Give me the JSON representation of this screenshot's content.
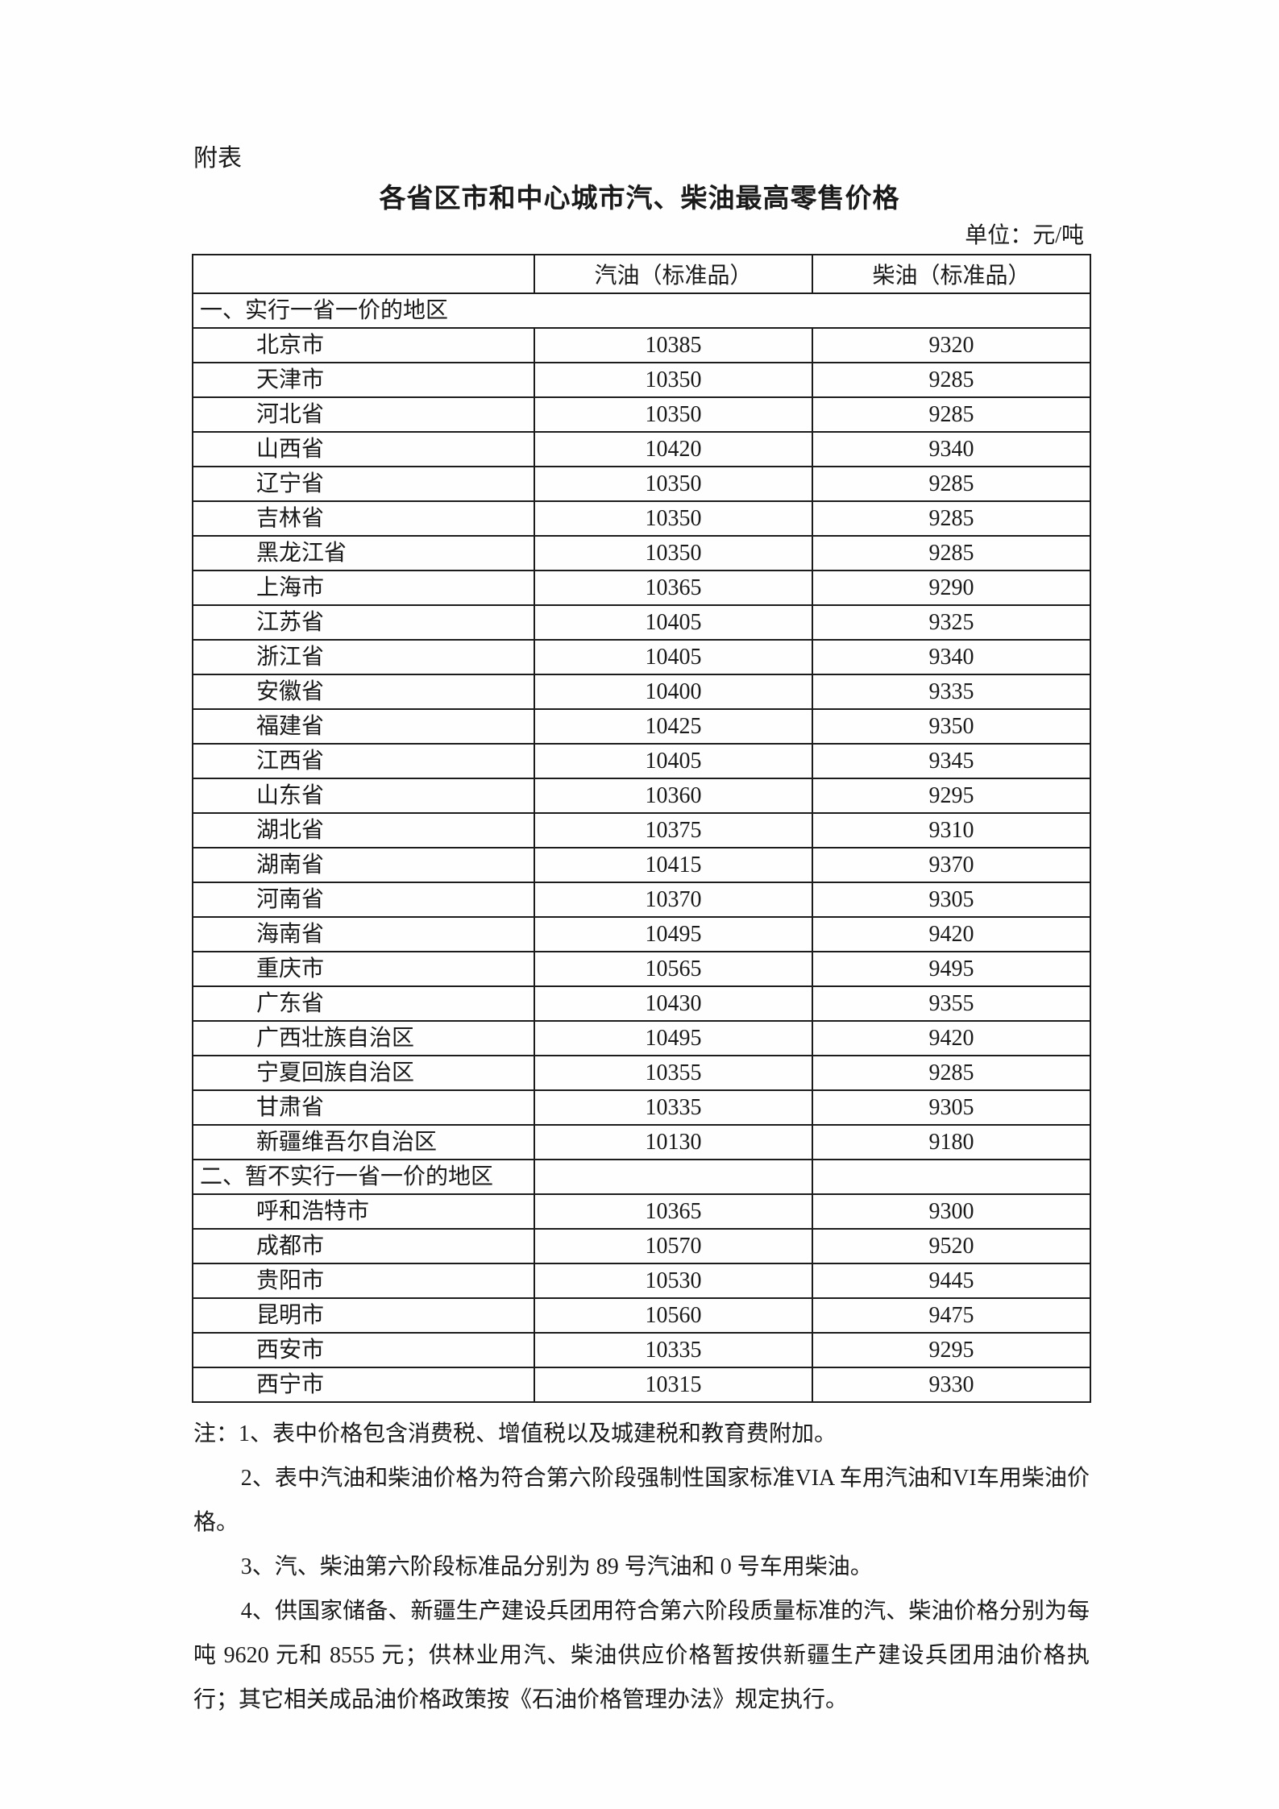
{
  "page": {
    "annex_label": "附表",
    "title": "各省区市和中心城市汽、柴油最高零售价格",
    "unit_label": "单位：元/吨"
  },
  "table": {
    "column_headers": [
      "",
      "汽油（标准品）",
      "柴油（标准品）"
    ],
    "sections": [
      {
        "header": "一、实行一省一价的地区",
        "merged_header_row": true,
        "rows": [
          [
            "北京市",
            "10385",
            "9320"
          ],
          [
            "天津市",
            "10350",
            "9285"
          ],
          [
            "河北省",
            "10350",
            "9285"
          ],
          [
            "山西省",
            "10420",
            "9340"
          ],
          [
            "辽宁省",
            "10350",
            "9285"
          ],
          [
            "吉林省",
            "10350",
            "9285"
          ],
          [
            "黑龙江省",
            "10350",
            "9285"
          ],
          [
            "上海市",
            "10365",
            "9290"
          ],
          [
            "江苏省",
            "10405",
            "9325"
          ],
          [
            "浙江省",
            "10405",
            "9340"
          ],
          [
            "安徽省",
            "10400",
            "9335"
          ],
          [
            "福建省",
            "10425",
            "9350"
          ],
          [
            "江西省",
            "10405",
            "9345"
          ],
          [
            "山东省",
            "10360",
            "9295"
          ],
          [
            "湖北省",
            "10375",
            "9310"
          ],
          [
            "湖南省",
            "10415",
            "9370"
          ],
          [
            "河南省",
            "10370",
            "9305"
          ],
          [
            "海南省",
            "10495",
            "9420"
          ],
          [
            "重庆市",
            "10565",
            "9495"
          ],
          [
            "广东省",
            "10430",
            "9355"
          ],
          [
            "广西壮族自治区",
            "10495",
            "9420"
          ],
          [
            "宁夏回族自治区",
            "10355",
            "9285"
          ],
          [
            "甘肃省",
            "10335",
            "9305"
          ],
          [
            "新疆维吾尔自治区",
            "10130",
            "9180"
          ]
        ]
      },
      {
        "header": "二、暂不实行一省一价的地区",
        "merged_header_row": false,
        "rows": [
          [
            "呼和浩特市",
            "10365",
            "9300"
          ],
          [
            "成都市",
            "10570",
            "9520"
          ],
          [
            "贵阳市",
            "10530",
            "9445"
          ],
          [
            "昆明市",
            "10560",
            "9475"
          ],
          [
            "西安市",
            "10335",
            "9295"
          ],
          [
            "西宁市",
            "10315",
            "9330"
          ]
        ]
      }
    ]
  },
  "notes": [
    "注：1、表中价格包含消费税、增值税以及城建税和教育费附加。",
    "2、表中汽油和柴油价格为符合第六阶段强制性国家标准VIA 车用汽油和VI车用柴油价格。",
    "3、汽、柴油第六阶段标准品分别为 89 号汽油和 0 号车用柴油。",
    "4、供国家储备、新疆生产建设兵团用符合第六阶段质量标准的汽、柴油价格分别为每吨 9620 元和 8555 元；供林业用汽、柴油供应价格暂按供新疆生产建设兵团用油价格执行；其它相关成品油价格政策按《石油价格管理办法》规定执行。"
  ],
  "colors": {
    "text": "#1a1a1a",
    "border": "#1c1c1c",
    "background": "#ffffff"
  }
}
